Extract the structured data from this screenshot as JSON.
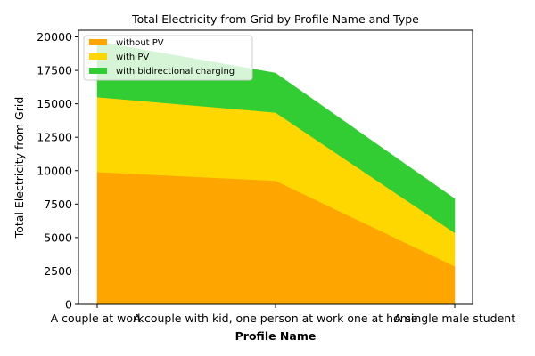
{
  "chart_data": {
    "type": "area",
    "stacked": true,
    "title": "Total Electricity from Grid by Profile Name and Type",
    "xlabel": "Profile Name",
    "ylabel": "Total Electricity from Grid",
    "categories": [
      "A couple at work",
      "A couple with kid, one person at work one at home",
      "A single male student"
    ],
    "ylim": [
      0,
      20500
    ],
    "yticks": [
      0,
      2500,
      5000,
      7500,
      10000,
      12500,
      15000,
      17500,
      20000
    ],
    "ytick_labels": [
      "0",
      "2500",
      "5000",
      "7500",
      "10000",
      "12500",
      "15000",
      "17500",
      "20000"
    ],
    "grid": false,
    "legend_position": "top-left",
    "series": [
      {
        "name": "without PV",
        "color": "#FFA500",
        "values": [
          9900,
          9250,
          2850
        ]
      },
      {
        "name": "with PV",
        "color": "#FFD700",
        "values": [
          5600,
          5100,
          2500
        ]
      },
      {
        "name": "with bidirectional charging",
        "color": "#32CD32",
        "values": [
          4150,
          2950,
          2550
        ]
      }
    ]
  }
}
